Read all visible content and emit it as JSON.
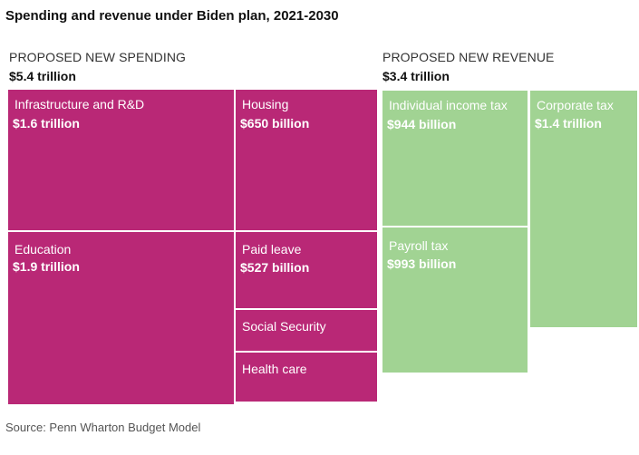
{
  "chart_data": {
    "type": "treemap",
    "title": "Spending and revenue under Biden plan, 2021-2030",
    "source": "Source: Penn Wharton Budget Model",
    "colors": {
      "spending": "#b92876",
      "revenue": "#a1d393"
    },
    "panels": {
      "spending": {
        "label": "PROPOSED NEW SPENDING",
        "total": "$5.4 trillion",
        "total_value_billion": 5400,
        "items": [
          {
            "name": "Infrastructure and R&D",
            "value": "$1.6 trillion",
            "value_billion": 1600
          },
          {
            "name": "Education",
            "value": "$1.9 trillion",
            "value_billion": 1900
          },
          {
            "name": "Housing",
            "value": "$650 billion",
            "value_billion": 650
          },
          {
            "name": "Paid leave",
            "value": "$527 billion",
            "value_billion": 527
          },
          {
            "name": "Social Security",
            "value": "",
            "value_billion": null
          },
          {
            "name": "Health care",
            "value": "",
            "value_billion": null
          }
        ]
      },
      "revenue": {
        "label": "PROPOSED NEW REVENUE",
        "total": "$3.4 trillion",
        "total_value_billion": 3400,
        "items": [
          {
            "name": "Individual income tax",
            "value": "$944 billion",
            "value_billion": 944
          },
          {
            "name": "Payroll tax",
            "value": "$993 billion",
            "value_billion": 993
          },
          {
            "name": "Corporate tax",
            "value": "$1.4 trillion",
            "value_billion": 1400
          }
        ]
      }
    }
  }
}
